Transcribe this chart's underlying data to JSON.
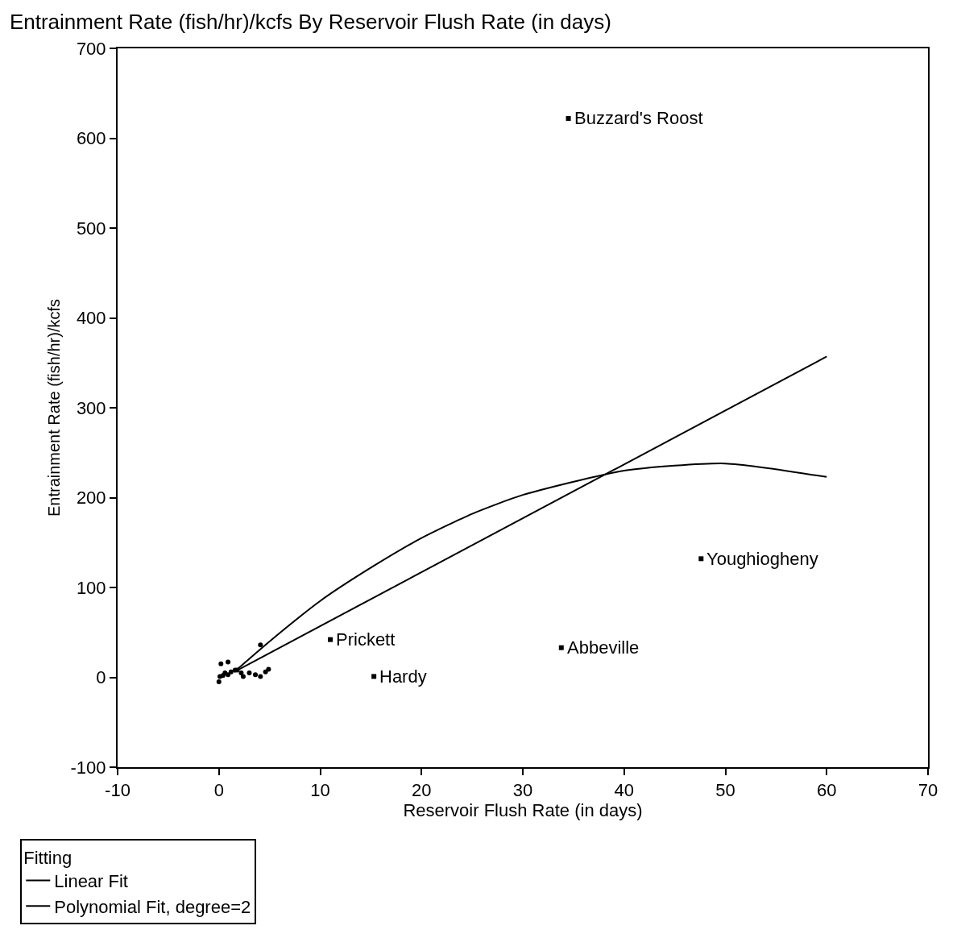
{
  "chart_data": {
    "type": "scatter",
    "title": "Entrainment Rate (fish/hr)/kcfs By Reservoir Flush Rate (in days)",
    "xlabel": "Reservoir Flush Rate (in days)",
    "ylabel": "Entrainment Rate (fish/hr)/kcfs",
    "legend_title": "Fitting",
    "xlim": [
      -10,
      70
    ],
    "xticks": [
      -10,
      0,
      10,
      20,
      30,
      40,
      50,
      60,
      70
    ],
    "ylim": [
      -100,
      700
    ],
    "yticks": [
      -100,
      0,
      100,
      200,
      300,
      400,
      500,
      600,
      700
    ],
    "legend": "bottom left",
    "series": [
      {
        "marker": "square",
        "color": "#000000",
        "x": [
          34.5,
          47.6,
          11.0,
          15.3,
          33.8
        ],
        "values": [
          622,
          132,
          42,
          1,
          33
        ]
      },
      {
        "marker": "circle",
        "color": "#000000",
        "x": [
          0.2,
          0.9,
          4.1,
          0,
          0.4,
          0.6,
          1.2,
          1.6,
          2.2,
          2.4,
          3.0,
          3.6,
          4.1,
          4.6,
          4.9,
          0.1,
          0.9,
          1.8
        ],
        "values": [
          15,
          17,
          36,
          -5,
          2,
          5,
          6,
          8,
          5,
          1,
          5,
          3,
          1,
          6,
          9,
          1,
          3,
          8
        ]
      },
      {
        "type": "line",
        "name": "Linear Fit",
        "color": "#000000",
        "marker": "none",
        "x": [
          1.5,
          60
        ],
        "values": [
          6,
          357
        ]
      },
      {
        "type": "line",
        "name": "Polynomial Fit, degree=2",
        "color": "#000000",
        "marker": "none",
        "x": [
          1.5,
          5,
          10,
          15,
          20,
          25,
          30,
          40,
          50,
          60
        ],
        "values": [
          6,
          40,
          85,
          122,
          155,
          182,
          203,
          230,
          238,
          223
        ]
      }
    ],
    "annotations": [
      {
        "text": "Buzzard's Roost",
        "x": 34.5,
        "y": 622
      },
      {
        "text": "Youghiogheny",
        "x": 47.6,
        "y": 132
      },
      {
        "text": "Prickett",
        "x": 11.0,
        "y": 42
      },
      {
        "text": "Hardy",
        "x": 15.3,
        "y": 1
      },
      {
        "text": "Abbeville",
        "x": 33.8,
        "y": 33
      }
    ]
  }
}
